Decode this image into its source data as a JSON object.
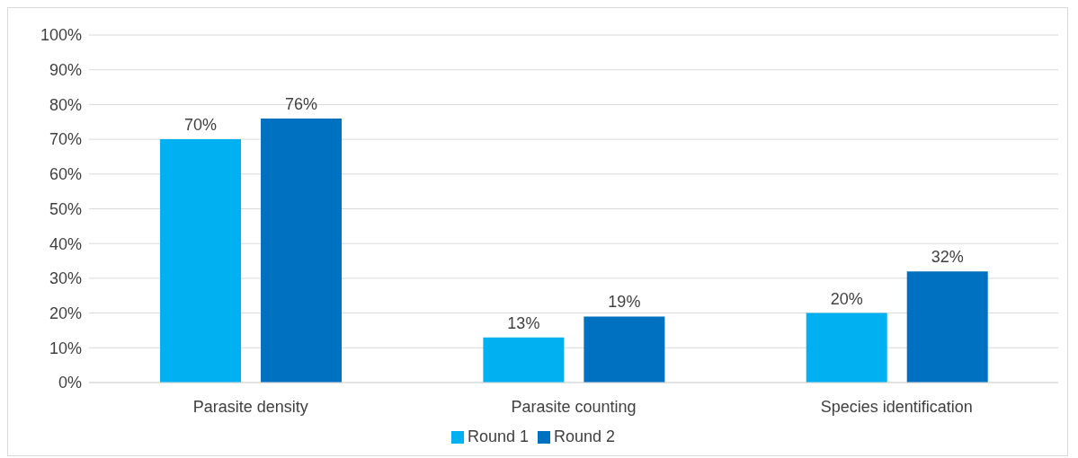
{
  "chart_data": {
    "type": "bar",
    "categories": [
      "Parasite density",
      "Parasite counting",
      "Species identification"
    ],
    "series": [
      {
        "name": "Round 1",
        "color": "#00b0f0",
        "values": [
          70,
          13,
          20
        ],
        "value_labels": [
          "70%",
          "13%",
          "20%"
        ]
      },
      {
        "name": "Round 2",
        "color": "#0070c0",
        "values": [
          76,
          19,
          32
        ],
        "value_labels": [
          "76%",
          "19%",
          "32%"
        ]
      }
    ],
    "ylim": [
      0,
      100
    ],
    "yticks": [
      {
        "value": 0,
        "label": "0%"
      },
      {
        "value": 10,
        "label": "10%"
      },
      {
        "value": 20,
        "label": "20%"
      },
      {
        "value": 30,
        "label": "30%"
      },
      {
        "value": 40,
        "label": "40%"
      },
      {
        "value": 50,
        "label": "50%"
      },
      {
        "value": 60,
        "label": "60%"
      },
      {
        "value": 70,
        "label": "70%"
      },
      {
        "value": 80,
        "label": "80%"
      },
      {
        "value": 90,
        "label": "90%"
      },
      {
        "value": 100,
        "label": "100%"
      }
    ],
    "grid": "y",
    "legend": "bottom"
  }
}
